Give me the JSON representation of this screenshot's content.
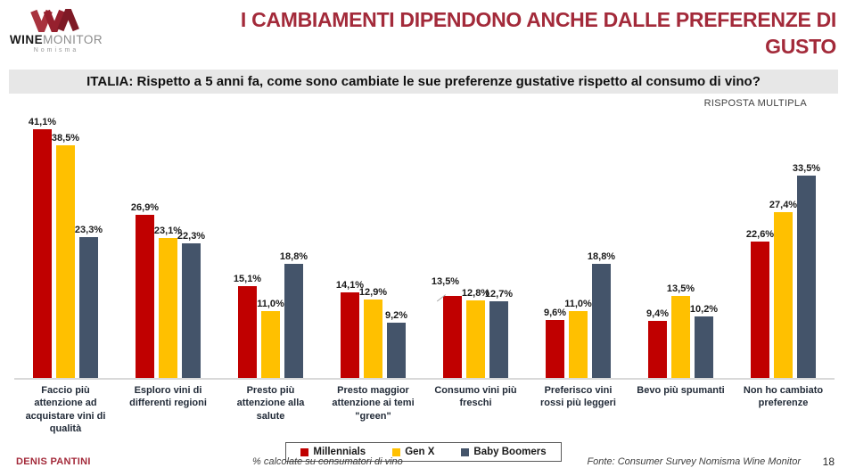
{
  "header": {
    "title": "I CAMBIAMENTI DIPENDONO ANCHE DALLE PREFERENZE DI GUSTO",
    "logo": {
      "wordmark_bold": "WINE",
      "wordmark_light": "MONITOR",
      "subtext": "Nomisma",
      "mark_colors": [
        "#A8323E",
        "#96202E",
        "#7E1A26"
      ]
    }
  },
  "question_bar": "ITALIA: Rispetto a 5 anni fa, come sono cambiate le sue preferenze gustative rispetto al consumo di vino?",
  "response_note": "RISPOSTA MULTIPLA",
  "chart_data": {
    "type": "bar",
    "title": "ITALIA: Rispetto a 5 anni fa, come sono cambiate le sue preferenze gustative rispetto al consumo di vino?",
    "categories": [
      "Faccio più attenzione ad acquistare vini di qualità",
      "Esploro vini di differenti regioni",
      "Presto più attenzione alla salute",
      "Presto maggior attenzione ai temi \"green\"",
      "Consumo vini più freschi",
      "Preferisco vini rossi più leggeri",
      "Bevo più spumanti",
      "Non ho cambiato preferenze"
    ],
    "series": [
      {
        "name": "Millennials",
        "color": "#C00000",
        "values": [
          41.1,
          26.9,
          15.1,
          14.1,
          13.5,
          9.6,
          9.4,
          22.6
        ]
      },
      {
        "name": "Gen X",
        "color": "#FFC000",
        "values": [
          38.5,
          23.1,
          11.0,
          12.9,
          12.8,
          11.0,
          13.5,
          27.4
        ]
      },
      {
        "name": "Baby Boomers",
        "color": "#44546A",
        "values": [
          23.3,
          22.3,
          18.8,
          9.2,
          12.7,
          18.8,
          10.2,
          33.5
        ]
      }
    ],
    "value_label_format": "it-decimal-comma-percent",
    "ylim": [
      0,
      43
    ],
    "grid": false,
    "legend_position": "bottom",
    "label_adjustments": [
      {
        "series": 0,
        "cat": 4,
        "dx": -8,
        "dy": -8,
        "leader": true
      }
    ]
  },
  "footer": {
    "author": "DENIS PANTINI",
    "note": "% calcolate su consumatori di vino",
    "source": "Fonte: Consumer Survey Nomisma Wine Monitor",
    "page": "18"
  }
}
